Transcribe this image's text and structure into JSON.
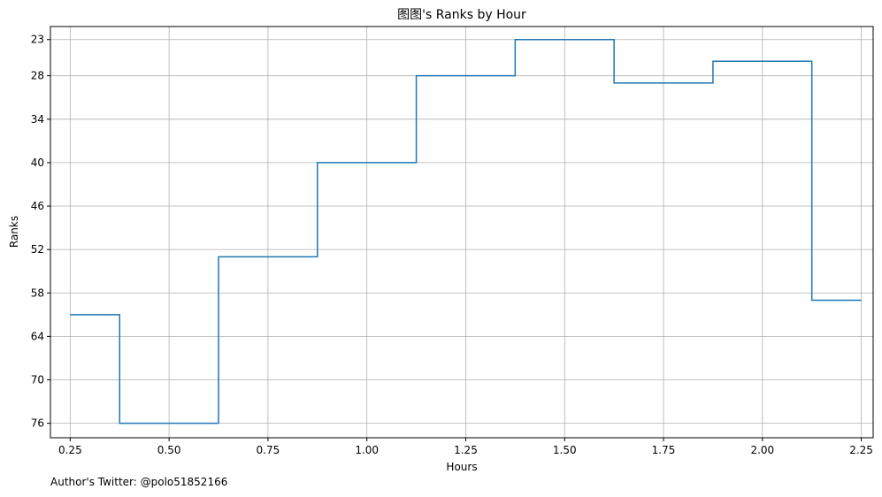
{
  "chart_data": {
    "type": "line",
    "drawstyle": "steps-mid",
    "title": "图图's Ranks by Hour",
    "xlabel": "Hours",
    "ylabel": "Ranks",
    "xlim": [
      0.2,
      2.28
    ],
    "ylim": [
      78,
      21.2
    ],
    "y_inverted": true,
    "grid": true,
    "line_color": "#1f77b4",
    "x_ticks": [
      "0.25",
      "0.50",
      "0.75",
      "1.00",
      "1.25",
      "1.50",
      "1.75",
      "2.00",
      "2.25"
    ],
    "y_ticks": [
      "23",
      "28",
      "34",
      "40",
      "46",
      "52",
      "58",
      "64",
      "70",
      "76"
    ],
    "series": [
      {
        "x": [
          0.25,
          0.5,
          0.75,
          1.0,
          1.25,
          1.5,
          1.75,
          2.0,
          2.25
        ],
        "y": [
          61,
          76,
          53,
          40,
          28,
          23,
          29,
          26,
          59
        ]
      }
    ]
  },
  "footer": {
    "text": "Author's Twitter: @polo51852166"
  }
}
